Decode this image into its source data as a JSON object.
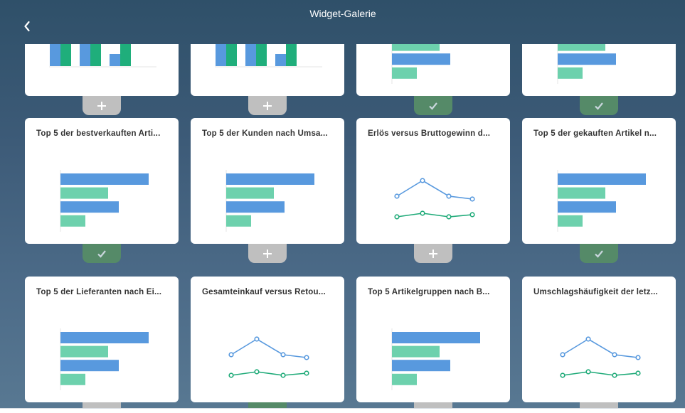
{
  "header": {
    "title": "Widget-Galerie",
    "back_icon": "chevron-left-icon"
  },
  "colors": {
    "series_blue": "#5899de",
    "series_green": "#6dd1ad",
    "line_green": "#1eaa78",
    "added_tab": "#558a68",
    "add_tab": "#bfbfbf"
  },
  "widgets": [
    {
      "title": "",
      "chart": "column",
      "state": "add",
      "icon": "plus-icon",
      "row": 0,
      "col": 0
    },
    {
      "title": "",
      "chart": "column",
      "state": "add",
      "icon": "plus-icon",
      "row": 0,
      "col": 1
    },
    {
      "title": "",
      "chart": "bar",
      "state": "added",
      "icon": "checkmark-icon",
      "row": 0,
      "col": 2
    },
    {
      "title": "",
      "chart": "bar",
      "state": "added",
      "icon": "checkmark-icon",
      "row": 0,
      "col": 3
    },
    {
      "title": "Top 5 der bestverkauften Arti...",
      "chart": "bar",
      "state": "added",
      "icon": "checkmark-icon",
      "row": 1,
      "col": 0
    },
    {
      "title": "Top 5 der Kunden nach Umsa...",
      "chart": "bar",
      "state": "add",
      "icon": "plus-icon",
      "row": 1,
      "col": 1
    },
    {
      "title": "Erlös versus Bruttogewinn d...",
      "chart": "line",
      "state": "add",
      "icon": "plus-icon",
      "row": 1,
      "col": 2
    },
    {
      "title": "Top 5 der gekauften Artikel n...",
      "chart": "bar",
      "state": "added",
      "icon": "checkmark-icon",
      "row": 1,
      "col": 3
    },
    {
      "title": "Top 5 der Lieferanten nach Ei...",
      "chart": "bar",
      "state": "add",
      "icon": "plus-icon",
      "row": 2,
      "col": 0
    },
    {
      "title": "Gesamteinkauf versus Retou...",
      "chart": "line",
      "state": "added",
      "icon": "checkmark-icon",
      "row": 2,
      "col": 1
    },
    {
      "title": "Top 5 Artikelgruppen nach B...",
      "chart": "bar",
      "state": "add",
      "icon": "plus-icon",
      "row": 2,
      "col": 2
    },
    {
      "title": "Umschlagshäufigkeit der letz...",
      "chart": "line",
      "state": "add",
      "icon": "plus-icon",
      "row": 2,
      "col": 3
    }
  ]
}
